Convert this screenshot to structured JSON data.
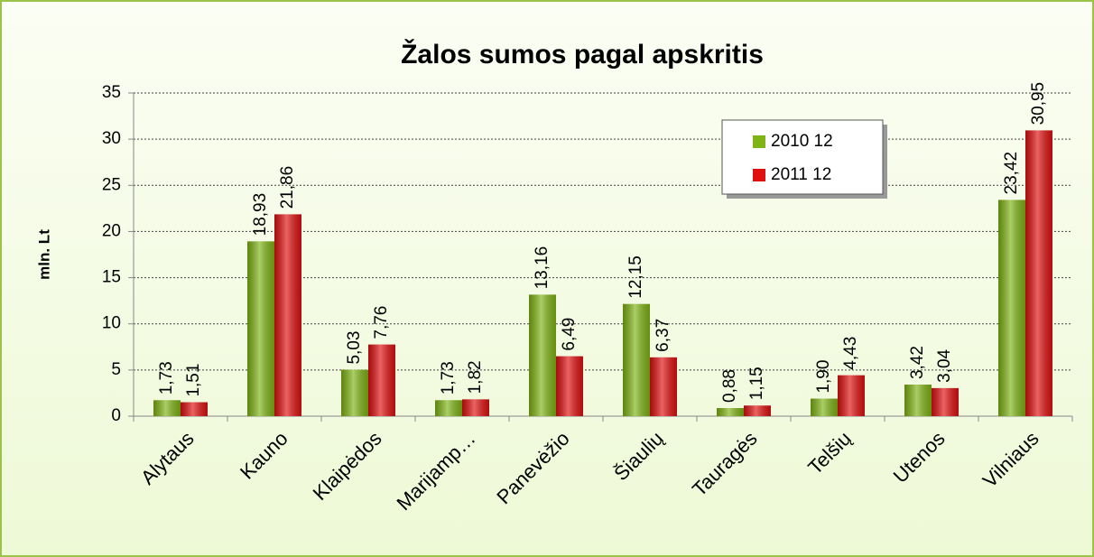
{
  "chart_data": {
    "type": "bar",
    "title": "Žalos sumos pagal apskritis",
    "y_label": "mln. Lt",
    "categories": [
      "Alytaus",
      "Kauno",
      "Klaipėdos",
      "Marijamp…",
      "Panevėžio",
      "Šiaulių",
      "Tauragės",
      "Telšių",
      "Utenos",
      "Vilniaus"
    ],
    "series": [
      {
        "name": "2010 12",
        "color": "#7fb414",
        "values": [
          1.73,
          18.93,
          5.03,
          1.73,
          13.16,
          12.15,
          0.88,
          1.9,
          3.42,
          23.42
        ],
        "value_labels": [
          "1,73",
          "18,93",
          "5,03",
          "1,73",
          "13,16",
          "12,15",
          "0,88",
          "1,90",
          "3,42",
          "23,42"
        ]
      },
      {
        "name": "2011 12",
        "color": "#e01010",
        "values": [
          1.51,
          21.86,
          7.76,
          1.82,
          6.49,
          6.37,
          1.15,
          4.43,
          3.04,
          30.95
        ],
        "value_labels": [
          "1,51",
          "21,86",
          "7,76",
          "1,82",
          "6,49",
          "6,37",
          "1,15",
          "4,43",
          "3,04",
          "30,95"
        ]
      }
    ],
    "ylim": [
      0,
      35
    ],
    "yticks": [
      0,
      5,
      10,
      15,
      20,
      25,
      30,
      35
    ],
    "grid": true,
    "legend": "upper right"
  }
}
